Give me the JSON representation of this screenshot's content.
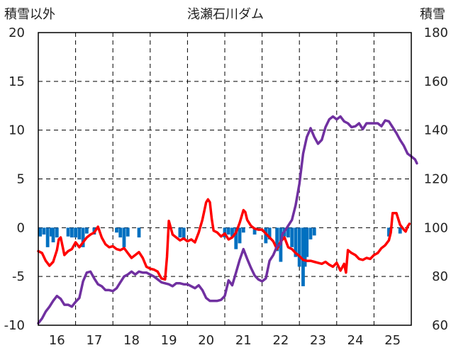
{
  "chart_data": {
    "type": "line",
    "title": "浅瀬石川ダム",
    "ylabel_left": "積雪以外",
    "ylabel_right": "積雪",
    "x_ticks": [
      "16",
      "17",
      "18",
      "19",
      "20",
      "21",
      "22",
      "23",
      "24",
      "25"
    ],
    "x_range": [
      15.5,
      25.5
    ],
    "y_left_range": [
      -10,
      20
    ],
    "y_left_ticks": [
      "20",
      "15",
      "10",
      "5",
      "0",
      "-5",
      "-10"
    ],
    "y_right_range": [
      60,
      180
    ],
    "y_right_ticks": [
      "180",
      "160",
      "140",
      "120",
      "100",
      "80",
      "60"
    ],
    "grid": true,
    "series": [
      {
        "axis": "left",
        "color": "#FF0000",
        "values": [
          [
            15.5,
            -2.4
          ],
          [
            15.6,
            -2.6
          ],
          [
            15.7,
            -3.4
          ],
          [
            15.8,
            -3.9
          ],
          [
            15.9,
            -3.5
          ],
          [
            16.0,
            -2.3
          ],
          [
            16.05,
            -1.2
          ],
          [
            16.1,
            -1.0
          ],
          [
            16.2,
            -2.8
          ],
          [
            16.3,
            -2.4
          ],
          [
            16.4,
            -2.2
          ],
          [
            16.5,
            -1.5
          ],
          [
            16.6,
            -2.0
          ],
          [
            16.7,
            -1.5
          ],
          [
            16.8,
            -1.0
          ],
          [
            16.9,
            -0.7
          ],
          [
            17.0,
            -0.5
          ],
          [
            17.1,
            0.1
          ],
          [
            17.2,
            -1.0
          ],
          [
            17.3,
            -1.7
          ],
          [
            17.4,
            -2.0
          ],
          [
            17.5,
            -1.9
          ],
          [
            17.6,
            -2.2
          ],
          [
            17.7,
            -2.3
          ],
          [
            17.8,
            -2.1
          ],
          [
            17.9,
            -2.6
          ],
          [
            18.0,
            -3.1
          ],
          [
            18.1,
            -2.8
          ],
          [
            18.2,
            -2.5
          ],
          [
            18.3,
            -3.1
          ],
          [
            18.4,
            -4.0
          ],
          [
            18.5,
            -4.2
          ],
          [
            18.6,
            -4.3
          ],
          [
            18.7,
            -4.5
          ],
          [
            18.8,
            -5.2
          ],
          [
            18.9,
            -5.3
          ],
          [
            18.95,
            -3.0
          ],
          [
            19.0,
            0.7
          ],
          [
            19.1,
            -0.7
          ],
          [
            19.2,
            -1.0
          ],
          [
            19.3,
            -1.3
          ],
          [
            19.4,
            -1.1
          ],
          [
            19.5,
            -1.4
          ],
          [
            19.6,
            -1.2
          ],
          [
            19.7,
            -1.5
          ],
          [
            19.8,
            -0.5
          ],
          [
            19.9,
            0.8
          ],
          [
            20.0,
            2.6
          ],
          [
            20.05,
            2.9
          ],
          [
            20.1,
            2.6
          ],
          [
            20.15,
            0.9
          ],
          [
            20.2,
            -0.3
          ],
          [
            20.3,
            -0.5
          ],
          [
            20.4,
            -0.9
          ],
          [
            20.5,
            -0.6
          ],
          [
            20.6,
            -1.2
          ],
          [
            20.7,
            -1.0
          ],
          [
            20.8,
            -0.5
          ],
          [
            20.9,
            0.5
          ],
          [
            21.0,
            1.8
          ],
          [
            21.05,
            1.6
          ],
          [
            21.1,
            0.8
          ],
          [
            21.2,
            0.2
          ],
          [
            21.3,
            -0.1
          ],
          [
            21.4,
            -0.2
          ],
          [
            21.5,
            -0.2
          ],
          [
            21.6,
            -0.6
          ],
          [
            21.7,
            -1.0
          ],
          [
            21.8,
            -1.4
          ],
          [
            21.9,
            -2.2
          ],
          [
            22.0,
            -1.4
          ],
          [
            22.1,
            -1.0
          ],
          [
            22.2,
            -2.0
          ],
          [
            22.3,
            -2.2
          ],
          [
            22.4,
            -2.6
          ],
          [
            22.5,
            -2.9
          ],
          [
            22.6,
            -3.3
          ],
          [
            22.7,
            -3.4
          ],
          [
            22.8,
            -3.4
          ],
          [
            22.9,
            -3.5
          ],
          [
            23.0,
            -3.6
          ],
          [
            23.1,
            -3.7
          ],
          [
            23.2,
            -3.5
          ],
          [
            23.3,
            -3.8
          ],
          [
            23.4,
            -4.0
          ],
          [
            23.5,
            -3.6
          ],
          [
            23.6,
            -4.4
          ],
          [
            23.7,
            -3.7
          ],
          [
            23.75,
            -4.6
          ],
          [
            23.8,
            -2.3
          ],
          [
            23.9,
            -2.6
          ],
          [
            24.0,
            -2.8
          ],
          [
            24.1,
            -3.2
          ],
          [
            24.2,
            -3.3
          ],
          [
            24.3,
            -3.1
          ],
          [
            24.4,
            -3.2
          ],
          [
            24.5,
            -2.8
          ],
          [
            24.6,
            -2.6
          ],
          [
            24.7,
            -2.1
          ],
          [
            24.8,
            -1.8
          ],
          [
            24.9,
            -1.3
          ],
          [
            24.95,
            -0.5
          ],
          [
            25.0,
            1.5
          ],
          [
            25.1,
            1.5
          ],
          [
            25.2,
            0.3
          ],
          [
            25.3,
            -0.2
          ],
          [
            25.35,
            -0.4
          ],
          [
            25.4,
            0.1
          ],
          [
            25.45,
            0.4
          ]
        ]
      },
      {
        "axis": "left",
        "color": "#7030A0",
        "values": [
          [
            15.5,
            -9.8
          ],
          [
            15.6,
            -9.3
          ],
          [
            15.7,
            -8.6
          ],
          [
            15.8,
            -8.1
          ],
          [
            15.9,
            -7.5
          ],
          [
            16.0,
            -7.0
          ],
          [
            16.1,
            -7.3
          ],
          [
            16.2,
            -7.9
          ],
          [
            16.3,
            -7.9
          ],
          [
            16.4,
            -8.1
          ],
          [
            16.5,
            -7.6
          ],
          [
            16.6,
            -7.2
          ],
          [
            16.7,
            -5.5
          ],
          [
            16.8,
            -4.6
          ],
          [
            16.9,
            -4.5
          ],
          [
            17.0,
            -5.2
          ],
          [
            17.1,
            -5.8
          ],
          [
            17.2,
            -6.0
          ],
          [
            17.3,
            -6.4
          ],
          [
            17.4,
            -6.4
          ],
          [
            17.5,
            -6.5
          ],
          [
            17.6,
            -6.2
          ],
          [
            17.7,
            -5.6
          ],
          [
            17.8,
            -5.0
          ],
          [
            17.9,
            -4.8
          ],
          [
            18.0,
            -4.5
          ],
          [
            18.1,
            -4.8
          ],
          [
            18.2,
            -4.5
          ],
          [
            18.3,
            -4.6
          ],
          [
            18.4,
            -4.6
          ],
          [
            18.5,
            -4.8
          ],
          [
            18.6,
            -5.0
          ],
          [
            18.7,
            -5.3
          ],
          [
            18.8,
            -5.6
          ],
          [
            18.9,
            -5.7
          ],
          [
            19.0,
            -5.8
          ],
          [
            19.1,
            -6.0
          ],
          [
            19.2,
            -5.7
          ],
          [
            19.3,
            -5.7
          ],
          [
            19.4,
            -5.8
          ],
          [
            19.5,
            -5.8
          ],
          [
            19.6,
            -6.0
          ],
          [
            19.7,
            -6.2
          ],
          [
            19.8,
            -5.9
          ],
          [
            19.9,
            -6.4
          ],
          [
            20.0,
            -7.2
          ],
          [
            20.1,
            -7.5
          ],
          [
            20.2,
            -7.5
          ],
          [
            20.3,
            -7.5
          ],
          [
            20.4,
            -7.4
          ],
          [
            20.5,
            -7.0
          ],
          [
            20.6,
            -5.4
          ],
          [
            20.7,
            -5.9
          ],
          [
            20.8,
            -4.6
          ],
          [
            20.9,
            -3.3
          ],
          [
            21.0,
            -2.2
          ],
          [
            21.1,
            -3.2
          ],
          [
            21.2,
            -4.1
          ],
          [
            21.3,
            -4.9
          ],
          [
            21.4,
            -5.3
          ],
          [
            21.5,
            -5.5
          ],
          [
            21.6,
            -5.2
          ],
          [
            21.7,
            -3.4
          ],
          [
            21.8,
            -2.8
          ],
          [
            21.9,
            -1.9
          ],
          [
            22.0,
            -1.7
          ],
          [
            22.05,
            -0.6
          ],
          [
            22.1,
            -0.4
          ],
          [
            22.2,
            0.2
          ],
          [
            22.3,
            0.8
          ],
          [
            22.4,
            2.3
          ],
          [
            22.5,
            4.5
          ],
          [
            22.6,
            7.6
          ],
          [
            22.7,
            9.3
          ],
          [
            22.8,
            10.2
          ],
          [
            22.9,
            9.3
          ],
          [
            23.0,
            8.6
          ],
          [
            23.1,
            9.0
          ],
          [
            23.2,
            10.3
          ],
          [
            23.3,
            11.1
          ],
          [
            23.4,
            11.4
          ],
          [
            23.5,
            11.1
          ],
          [
            23.6,
            11.4
          ],
          [
            23.7,
            10.9
          ],
          [
            23.8,
            10.7
          ],
          [
            23.9,
            10.3
          ],
          [
            24.0,
            10.4
          ],
          [
            24.1,
            10.7
          ],
          [
            24.2,
            10.1
          ],
          [
            24.3,
            10.7
          ],
          [
            24.4,
            10.7
          ],
          [
            24.5,
            10.7
          ],
          [
            24.6,
            10.7
          ],
          [
            24.7,
            10.4
          ],
          [
            24.8,
            11.0
          ],
          [
            24.9,
            10.9
          ],
          [
            25.0,
            10.3
          ],
          [
            25.1,
            9.7
          ],
          [
            25.2,
            9.0
          ],
          [
            25.3,
            8.4
          ],
          [
            25.4,
            7.6
          ],
          [
            25.5,
            7.3
          ],
          [
            25.6,
            7.0
          ],
          [
            25.65,
            6.6
          ]
        ]
      },
      {
        "type": "bar",
        "axis": "left",
        "color": "#0070C0",
        "values": [
          [
            15.55,
            -0.9
          ],
          [
            15.65,
            -0.7
          ],
          [
            15.75,
            -2.0
          ],
          [
            15.85,
            -0.9
          ],
          [
            15.9,
            -1.5
          ],
          [
            16.0,
            -1.0
          ],
          [
            16.3,
            -0.9
          ],
          [
            16.4,
            -1.0
          ],
          [
            16.5,
            -1.0
          ],
          [
            16.6,
            -1.2
          ],
          [
            16.7,
            -2.0
          ],
          [
            16.8,
            -0.6
          ],
          [
            17.0,
            -0.7
          ],
          [
            17.6,
            -0.5
          ],
          [
            17.7,
            -1.0
          ],
          [
            17.8,
            -2.0
          ],
          [
            17.9,
            -0.9
          ],
          [
            18.2,
            -1.0
          ],
          [
            19.3,
            -1.0
          ],
          [
            19.4,
            -1.2
          ],
          [
            20.5,
            -1.0
          ],
          [
            20.6,
            -0.7
          ],
          [
            20.7,
            -0.9
          ],
          [
            20.8,
            -2.2
          ],
          [
            20.9,
            -1.6
          ],
          [
            21.0,
            -0.5
          ],
          [
            21.3,
            -0.7
          ],
          [
            21.6,
            -1.6
          ],
          [
            21.7,
            -1.2
          ],
          [
            21.9,
            -2.4
          ],
          [
            22.0,
            -3.5
          ],
          [
            22.1,
            -0.9
          ],
          [
            22.2,
            -1.0
          ],
          [
            22.3,
            -2.0
          ],
          [
            22.4,
            -3.0
          ],
          [
            22.5,
            -4.0
          ],
          [
            22.6,
            -6.0
          ],
          [
            22.65,
            -4.0
          ],
          [
            22.7,
            -3.0
          ],
          [
            22.8,
            -1.2
          ],
          [
            22.9,
            -0.8
          ],
          [
            24.9,
            -0.9
          ],
          [
            25.2,
            -0.6
          ]
        ]
      }
    ]
  }
}
